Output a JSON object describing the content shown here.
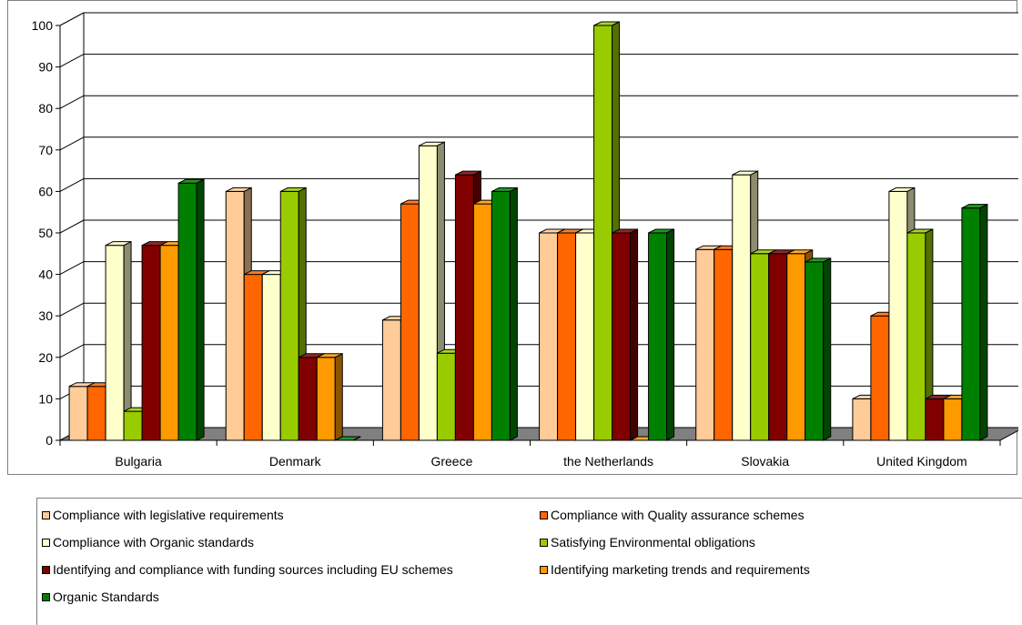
{
  "chart_data": {
    "type": "bar",
    "categories": [
      "Bulgaria",
      "Denmark",
      "Greece",
      "the Netherlands",
      "Slovakia",
      "United Kingdom"
    ],
    "series": [
      {
        "name": "Compliance with legislative requirements",
        "color": "#ffcc99",
        "values": [
          13,
          60,
          29,
          50,
          46,
          10
        ]
      },
      {
        "name": "Compliance with Quality assurance schemes",
        "color": "#ff6600",
        "values": [
          13,
          40,
          57,
          50,
          46,
          30
        ]
      },
      {
        "name": "Compliance with Organic standards",
        "color": "#ffffcc",
        "values": [
          47,
          40,
          71,
          50,
          64,
          60
        ]
      },
      {
        "name": "Satisfying Environmental obligations",
        "color": "#99cc00",
        "values": [
          7,
          60,
          21,
          100,
          45,
          50
        ]
      },
      {
        "name": "Identifying and compliance with funding sources including EU schemes",
        "color": "#800000",
        "values": [
          47,
          20,
          64,
          50,
          45,
          10
        ]
      },
      {
        "name": "Identifying marketing trends and requirements",
        "color": "#ff9900",
        "values": [
          47,
          20,
          57,
          0,
          45,
          10
        ]
      },
      {
        "name": "Organic Standards",
        "color": "#008000",
        "values": [
          62,
          0,
          60,
          50,
          43,
          56
        ]
      }
    ],
    "ylim": [
      0,
      100
    ],
    "yticks": [
      "0",
      "10",
      "20",
      "30",
      "40",
      "50",
      "60",
      "70",
      "80",
      "90",
      "100"
    ],
    "grid": true,
    "legend_position": "bottom"
  }
}
